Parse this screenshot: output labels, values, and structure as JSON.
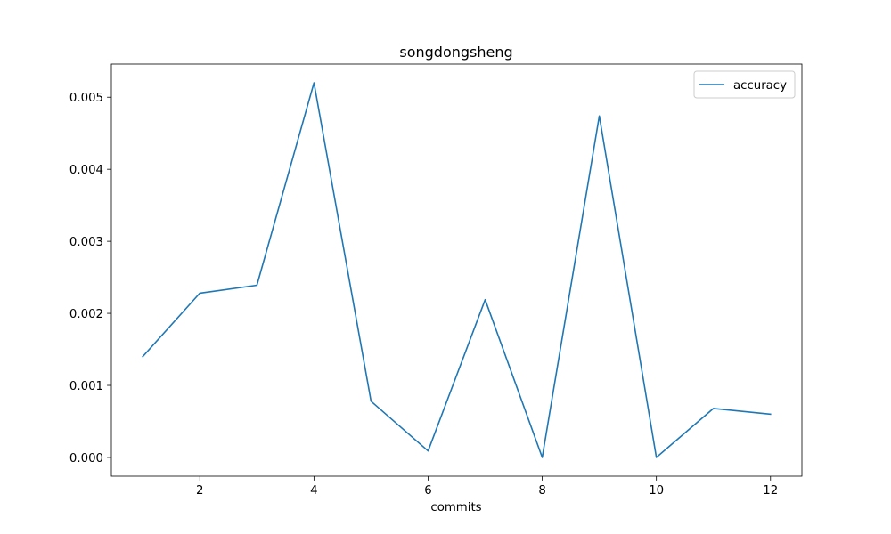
{
  "chart_data": {
    "type": "line",
    "title": "songdongsheng",
    "xlabel": "commits",
    "ylabel": "",
    "xlim": [
      0.45,
      12.55
    ],
    "ylim": [
      -0.00026,
      0.00546
    ],
    "xticks": [
      2,
      4,
      6,
      8,
      10,
      12
    ],
    "xtick_labels": [
      "2",
      "4",
      "6",
      "8",
      "10",
      "12"
    ],
    "yticks": [
      0.0,
      0.001,
      0.002,
      0.003,
      0.004,
      0.005
    ],
    "ytick_labels": [
      "0.000",
      "0.001",
      "0.002",
      "0.003",
      "0.004",
      "0.005"
    ],
    "grid": false,
    "legend_position": "upper right",
    "series": [
      {
        "name": "accuracy",
        "color": "#1f77b4",
        "x": [
          1,
          2,
          3,
          4,
          5,
          6,
          7,
          8,
          9,
          10,
          11,
          12
        ],
        "y": [
          0.0014,
          0.00228,
          0.00239,
          0.0052,
          0.00078,
          9e-05,
          0.00219,
          0.0,
          0.00474,
          0.0,
          0.00068,
          0.0006
        ]
      }
    ]
  }
}
